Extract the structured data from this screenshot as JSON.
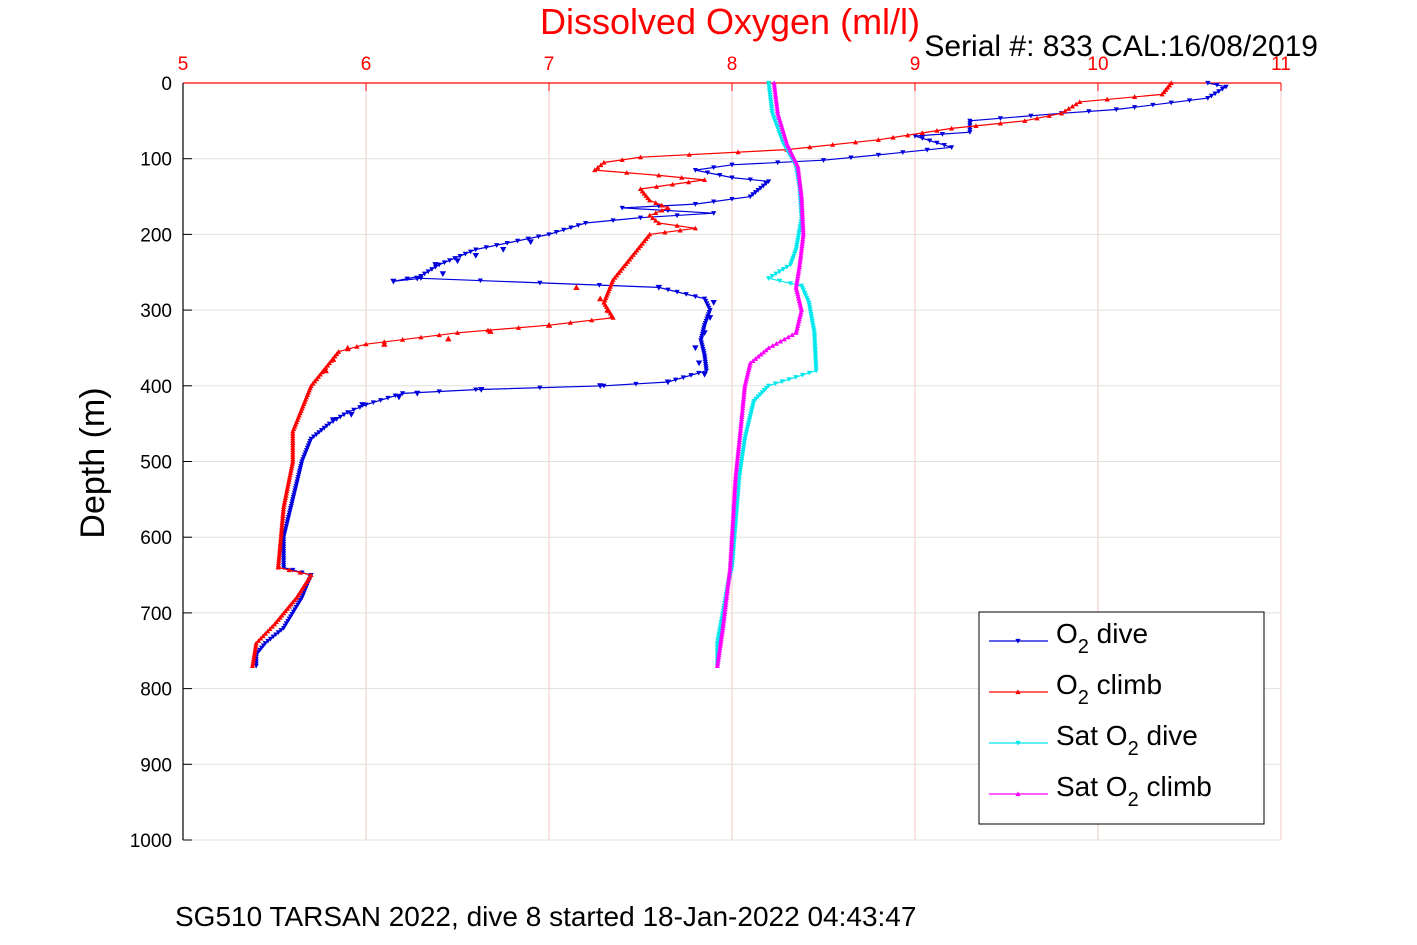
{
  "chart_data": {
    "type": "line",
    "title": "Dissolved Oxygen (ml/l)",
    "serial_note": "Serial #: 833  CAL:16/08/2019",
    "footer": "SG510 TARSAN 2022, dive 8 started 18-Jan-2022 04:43:47",
    "ylabel": "Depth (m)",
    "xlabel": "",
    "x_axis_position": "top",
    "y_reversed": true,
    "xlim": [
      5,
      11
    ],
    "ylim": [
      0,
      1000
    ],
    "x_ticks": [
      "5",
      "6",
      "7",
      "8",
      "9",
      "10",
      "11"
    ],
    "y_ticks": [
      "0",
      "100",
      "200",
      "300",
      "400",
      "500",
      "600",
      "700",
      "800",
      "900",
      "1000"
    ],
    "grid": true,
    "legend_position": "bottom-right",
    "colors": {
      "title": "#ff0000",
      "x_ticks": "#ff0000",
      "grid": "#f2c4c4"
    },
    "series": [
      {
        "name_main": "O",
        "name_sub": "2",
        "name_tail": " dive",
        "color": "#0000dd",
        "marker": "triangle-down",
        "style": "line",
        "points": [
          [
            10.6,
            0
          ],
          [
            10.7,
            5
          ],
          [
            10.6,
            20
          ],
          [
            10.1,
            35
          ],
          [
            9.8,
            40
          ],
          [
            9.3,
            50
          ],
          [
            9.3,
            65
          ],
          [
            9.0,
            70
          ],
          [
            9.2,
            85
          ],
          [
            8.8,
            95
          ],
          [
            8.5,
            102
          ],
          [
            8.0,
            108
          ],
          [
            7.8,
            115
          ],
          [
            8.0,
            125
          ],
          [
            8.2,
            130
          ],
          [
            8.1,
            150
          ],
          [
            7.8,
            160
          ],
          [
            7.4,
            165
          ],
          [
            7.9,
            172
          ],
          [
            7.5,
            178
          ],
          [
            7.2,
            185
          ],
          [
            7.0,
            200
          ],
          [
            6.6,
            220
          ],
          [
            6.4,
            240
          ],
          [
            6.3,
            255
          ],
          [
            6.15,
            262
          ],
          [
            6.3,
            258
          ],
          [
            7.6,
            270
          ],
          [
            7.85,
            285
          ],
          [
            7.88,
            300
          ],
          [
            7.85,
            320
          ],
          [
            7.83,
            340
          ],
          [
            7.85,
            360
          ],
          [
            7.86,
            380
          ],
          [
            7.65,
            395
          ],
          [
            7.3,
            400
          ],
          [
            6.6,
            405
          ],
          [
            6.2,
            410
          ],
          [
            6.0,
            425
          ],
          [
            5.9,
            435
          ],
          [
            5.8,
            450
          ],
          [
            5.7,
            470
          ],
          [
            5.65,
            500
          ],
          [
            5.6,
            550
          ],
          [
            5.55,
            600
          ],
          [
            5.55,
            640
          ],
          [
            5.7,
            650
          ],
          [
            5.65,
            680
          ],
          [
            5.55,
            720
          ],
          [
            5.45,
            740
          ],
          [
            5.4,
            755
          ],
          [
            5.4,
            770
          ]
        ]
      },
      {
        "name_main": "O",
        "name_sub": "2",
        "name_tail": " climb",
        "color": "#ff0000",
        "marker": "triangle-up",
        "style": "line",
        "points": [
          [
            10.4,
            0
          ],
          [
            10.35,
            15
          ],
          [
            9.9,
            25
          ],
          [
            9.8,
            40
          ],
          [
            9.6,
            50
          ],
          [
            9.2,
            60
          ],
          [
            8.8,
            75
          ],
          [
            8.3,
            88
          ],
          [
            7.5,
            98
          ],
          [
            7.3,
            105
          ],
          [
            7.25,
            115
          ],
          [
            7.6,
            122
          ],
          [
            7.85,
            128
          ],
          [
            7.5,
            140
          ],
          [
            7.55,
            155
          ],
          [
            7.65,
            165
          ],
          [
            7.55,
            175
          ],
          [
            7.6,
            185
          ],
          [
            7.8,
            192
          ],
          [
            7.55,
            200
          ],
          [
            7.45,
            230
          ],
          [
            7.35,
            260
          ],
          [
            7.3,
            290
          ],
          [
            7.35,
            310
          ],
          [
            7.0,
            320
          ],
          [
            6.5,
            330
          ],
          [
            6.0,
            345
          ],
          [
            5.85,
            355
          ],
          [
            5.8,
            370
          ],
          [
            5.7,
            400
          ],
          [
            5.65,
            430
          ],
          [
            5.6,
            460
          ],
          [
            5.6,
            500
          ],
          [
            5.55,
            560
          ],
          [
            5.52,
            640
          ],
          [
            5.7,
            650
          ],
          [
            5.62,
            680
          ],
          [
            5.5,
            715
          ],
          [
            5.4,
            740
          ],
          [
            5.38,
            770
          ]
        ]
      },
      {
        "name_main": "Sat O",
        "name_sub": "2",
        "name_tail": " dive",
        "color": "#00e8ee",
        "marker": "triangle-down",
        "style": "line",
        "points": [
          [
            8.2,
            0
          ],
          [
            8.22,
            40
          ],
          [
            8.28,
            80
          ],
          [
            8.35,
            110
          ],
          [
            8.37,
            140
          ],
          [
            8.38,
            180
          ],
          [
            8.35,
            220
          ],
          [
            8.32,
            240
          ],
          [
            8.2,
            258
          ],
          [
            8.38,
            268
          ],
          [
            8.42,
            290
          ],
          [
            8.45,
            330
          ],
          [
            8.46,
            380
          ],
          [
            8.2,
            400
          ],
          [
            8.12,
            420
          ],
          [
            8.1,
            440
          ],
          [
            8.07,
            470
          ],
          [
            8.04,
            520
          ],
          [
            8.02,
            580
          ],
          [
            8.0,
            640
          ],
          [
            7.98,
            660
          ],
          [
            7.95,
            700
          ],
          [
            7.92,
            740
          ],
          [
            7.92,
            770
          ]
        ]
      },
      {
        "name_main": "Sat O",
        "name_sub": "2",
        "name_tail": " climb",
        "color": "#ff00ff",
        "marker": "triangle-up",
        "style": "line",
        "points": [
          [
            8.23,
            0
          ],
          [
            8.25,
            40
          ],
          [
            8.3,
            80
          ],
          [
            8.36,
            110
          ],
          [
            8.38,
            150
          ],
          [
            8.39,
            200
          ],
          [
            8.37,
            240
          ],
          [
            8.35,
            270
          ],
          [
            8.38,
            300
          ],
          [
            8.35,
            330
          ],
          [
            8.2,
            350
          ],
          [
            8.1,
            370
          ],
          [
            8.07,
            400
          ],
          [
            8.05,
            450
          ],
          [
            8.02,
            520
          ],
          [
            8.0,
            600
          ],
          [
            7.99,
            640
          ],
          [
            7.97,
            680
          ],
          [
            7.95,
            720
          ],
          [
            7.92,
            770
          ]
        ]
      },
      {
        "name": "",
        "color": "#0000dd",
        "marker": "triangle-down",
        "style": "markers",
        "points": [
          [
            6.15,
            262
          ],
          [
            6.28,
            258
          ],
          [
            6.42,
            252
          ],
          [
            6.38,
            240
          ],
          [
            6.5,
            235
          ],
          [
            6.6,
            228
          ],
          [
            6.75,
            220
          ],
          [
            6.9,
            210
          ],
          [
            7.6,
            270
          ],
          [
            7.9,
            290
          ],
          [
            7.88,
            310
          ],
          [
            7.85,
            330
          ],
          [
            7.8,
            350
          ],
          [
            7.82,
            370
          ],
          [
            7.85,
            385
          ],
          [
            7.65,
            395
          ],
          [
            7.28,
            400
          ],
          [
            6.63,
            405
          ],
          [
            6.28,
            410
          ],
          [
            6.18,
            415
          ],
          [
            5.98,
            425
          ],
          [
            5.92,
            438
          ],
          [
            5.82,
            445
          ]
        ]
      },
      {
        "name": "",
        "color": "#ff0000",
        "marker": "triangle-up",
        "style": "markers",
        "points": [
          [
            7.15,
            270
          ],
          [
            7.28,
            285
          ],
          [
            7.32,
            300
          ],
          [
            7.0,
            320
          ],
          [
            6.68,
            328
          ],
          [
            6.45,
            338
          ],
          [
            6.1,
            345
          ],
          [
            5.9,
            350
          ],
          [
            5.82,
            365
          ],
          [
            5.78,
            380
          ]
        ]
      }
    ]
  }
}
